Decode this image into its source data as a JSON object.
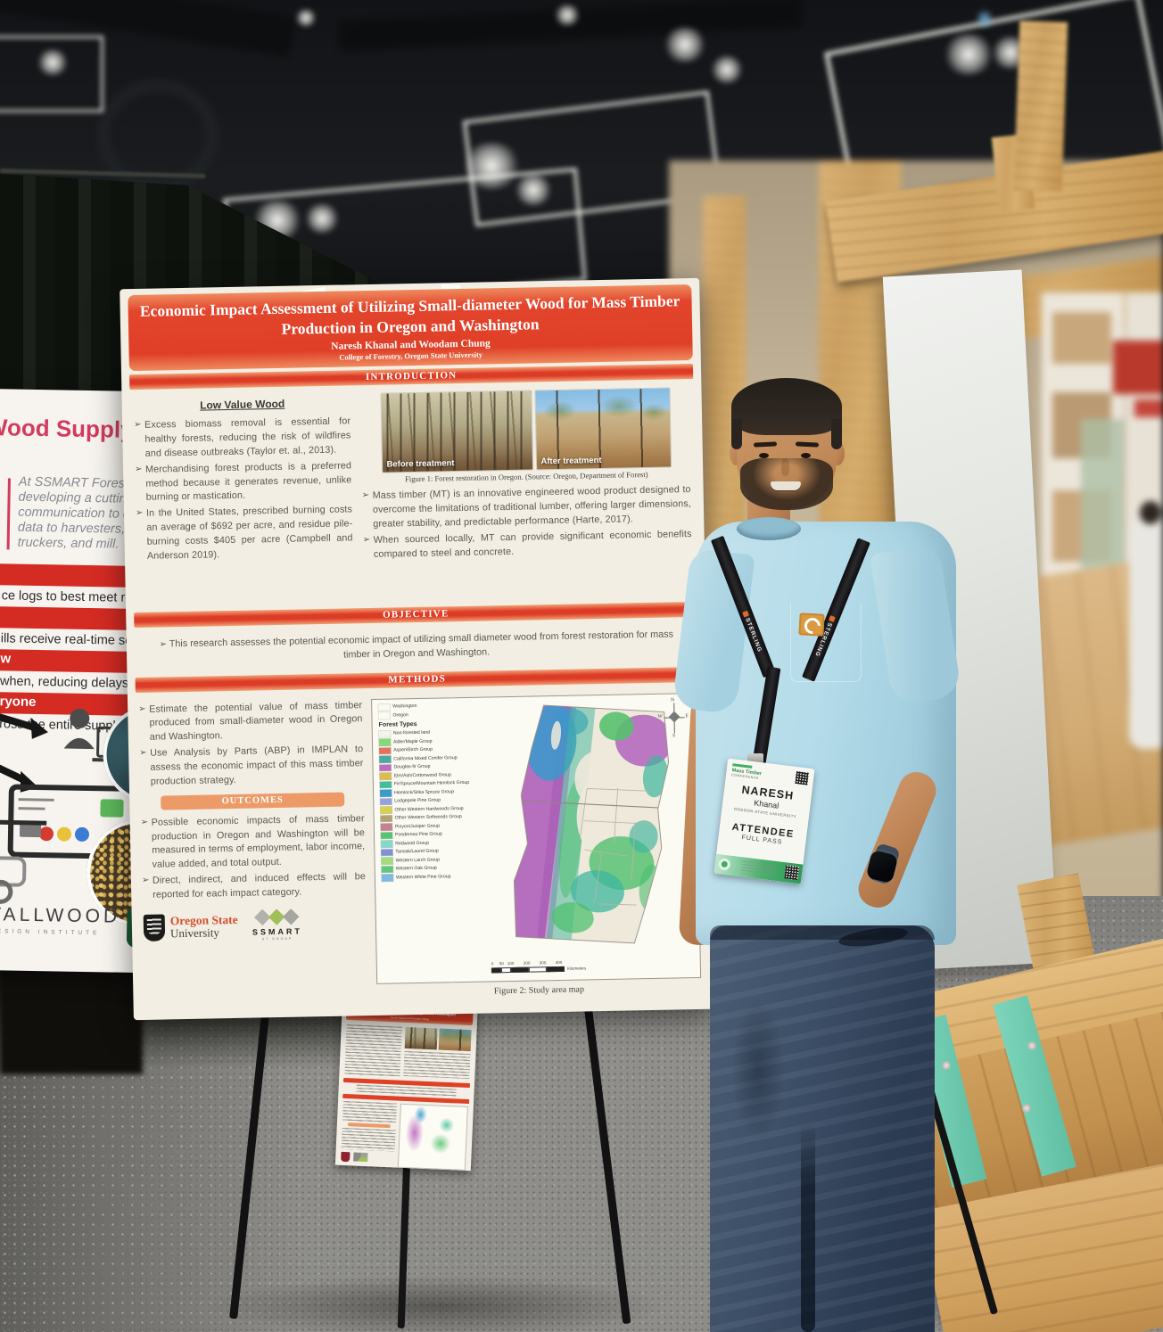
{
  "colors": {
    "poster_red": "#df3f27",
    "section_bar_red": "#dc3b26",
    "outcomes_orange": "#ec9b68",
    "left_poster_red": "#d42b23",
    "left_poster_pink": "#d23b5e",
    "badge_green": "#3fae62",
    "teal_bracket": "#6fccb2",
    "shirt_blue": "#b5dcea",
    "lanyard_black": "#1c1c1e",
    "wood": "#cda263",
    "carpet_gray": "#8e8d89"
  },
  "main_poster": {
    "title": "Economic Impact Assessment of Utilizing Small-diameter Wood for Mass Timber Production in Oregon and Washington",
    "authors": "Naresh Khanal and Woodam Chung",
    "affiliation": "College of Forestry, Oregon State University",
    "sections": {
      "introduction": "INTRODUCTION",
      "objective": "OBJECTIVE",
      "methods": "METHODS",
      "outcomes": "OUTCOMES"
    },
    "intro": {
      "heading": "Low Value Wood",
      "bullets": [
        "Excess biomass removal is essential for healthy forests, reducing the risk of wildfires and disease outbreaks  (Taylor et. al., 2013).",
        "Merchandising forest products is a preferred method because it generates revenue, unlike burning or mastication.",
        "In the United States, prescribed burning costs an average of $692 per acre, and residue pile-burning costs $405 per acre (Campbell and Anderson 2019)."
      ],
      "figure1": {
        "before_label": "Before treatment",
        "after_label": "After treatment",
        "caption": "Figure 1: Forest restoration in Oregon. (Source: Oregon, Department of Forest)"
      },
      "right_bullets": [
        "Mass timber (MT) is an innovative engineered wood product designed to overcome the limitations of traditional lumber, offering larger dimensions, greater stability, and predictable performance  (Harte, 2017).",
        "When sourced locally, MT can provide significant economic benefits compared to steel and concrete."
      ]
    },
    "objective_text": "This research assesses the potential economic impact of utilizing small diameter wood from forest restoration for mass timber in Oregon and Washington.",
    "methods_bullets": [
      "Estimate the potential value of mass timber produced from small-diameter wood in Oregon and Washington.",
      "Use Analysis by Parts (ABP) in IMPLAN to assess the economic impact of this mass timber production strategy."
    ],
    "outcomes_bullets": [
      "Possible economic impacts of mass timber production in Oregon and Washington will be measured in terms of employment, labor income, value added, and total output.",
      "Direct, indirect, and induced effects will be reported for each impact category."
    ],
    "figure2": {
      "regions": [
        "Washington",
        "Oregon"
      ],
      "legend_title": "Forest Types",
      "legend_items": [
        {
          "label": "Non-forested land",
          "color": "#f6f4e9"
        },
        {
          "label": "Alder/Maple Group",
          "color": "#86d977"
        },
        {
          "label": "Aspen/Birch Group",
          "color": "#e8705c"
        },
        {
          "label": "California Mixed Conifer Group",
          "color": "#4aa9a0"
        },
        {
          "label": "Douglas-fir Group",
          "color": "#bc6cc1"
        },
        {
          "label": "Elm/Ash/Cottonwood Group",
          "color": "#d9bd4f"
        },
        {
          "label": "Fir/Spruce/Mountain Hemlock Group",
          "color": "#3fbf9a"
        },
        {
          "label": "Hemlock/Sitka Spruce Group",
          "color": "#3a9ccb"
        },
        {
          "label": "Lodgepole Pine Group",
          "color": "#93a3de"
        },
        {
          "label": "Other Western Hardwoods Group",
          "color": "#d6d14e"
        },
        {
          "label": "Other Western Softwoods Group",
          "color": "#b3a272"
        },
        {
          "label": "Pinyon/Juniper Group",
          "color": "#c4828f"
        },
        {
          "label": "Ponderosa Pine Group",
          "color": "#55c370"
        },
        {
          "label": "Redwood Group",
          "color": "#82d8cb"
        },
        {
          "label": "Tanoak/Laurel Group",
          "color": "#7e90d8"
        },
        {
          "label": "Western Larch Group",
          "color": "#a6da80"
        },
        {
          "label": "Western Oak Group",
          "color": "#63c67d"
        },
        {
          "label": "Western White Pine Group",
          "color": "#7db9e2"
        }
      ],
      "compass": {
        "n": "N",
        "e": "E",
        "s": "S",
        "w": "W"
      },
      "scale": {
        "values": [
          0,
          50,
          100,
          200,
          300,
          400
        ],
        "unit": "Kilometers"
      },
      "caption": "Figure 2: Study area map"
    },
    "logos": {
      "osu_line1": "Oregon State",
      "osu_line2": "University",
      "ssmart": "SSMART",
      "ssmart_sub": "ST GROUP"
    }
  },
  "left_poster": {
    "title": "Wood Supply Chain",
    "quote": "At SSMART Forestry, w\ndeveloping a cutting-\ncommunication to de\ndata to harvesters, fo\ntruckers, and mill.",
    "bars": [
      {
        "highlight": "",
        "text": "ce logs to best meet real-time r"
      },
      {
        "highlight": "",
        "text": "ills receive real-time sorting an"
      },
      {
        "highlight": "w",
        "text": "when, reducing delays."
      },
      {
        "highlight": "ryone",
        "text": "ross the entire supply chain."
      }
    ],
    "tallwood": "TALLWOOD",
    "tallwood_sub": "DESIGN INSTITUTE"
  },
  "badge": {
    "event_line1": "Mass Timber",
    "event_line2": "CONFERENCE",
    "first_name": "NARESH",
    "last_name": "Khanal",
    "organization": "OREGON STATE UNIVERSITY",
    "role": "ATTENDEE",
    "pass_type": "FULL PASS"
  },
  "lanyard": {
    "brand": "STERLING"
  }
}
